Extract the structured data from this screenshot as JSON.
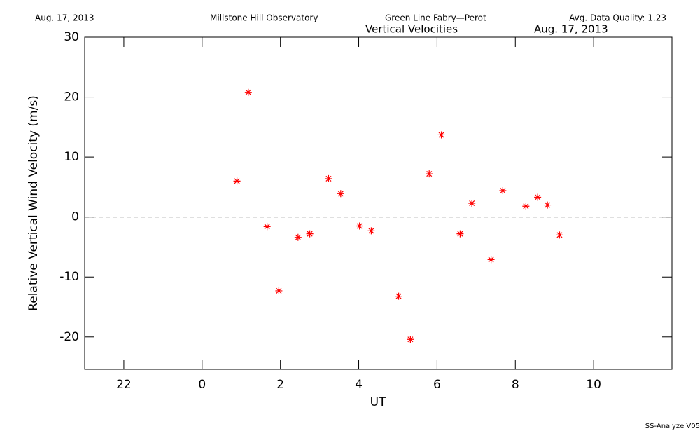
{
  "chart_data": {
    "type": "scatter",
    "header": [
      "Aug. 17, 2013",
      "Millstone Hill Observatory",
      "Green Line Fabry—Perot",
      "Avg. Data Quality: 1.23"
    ],
    "title": "Vertical Velocities",
    "subtitle": "Aug. 17, 2013",
    "x_label": "UT",
    "y_label": "Relative Vertical Wind Velocity (m/s)",
    "footer": "SS-Analyze V05",
    "xlim": [
      -3,
      12
    ],
    "xticks": [
      {
        "value": -2,
        "label": "22"
      },
      0,
      2,
      4,
      6,
      8,
      10
    ],
    "ylim": [
      -25.4,
      30
    ],
    "yticks": [
      -20,
      -10,
      0,
      10,
      20,
      30
    ],
    "reference_line": 0,
    "marker": "asterisk",
    "color": "#ff0000",
    "x": [
      0.89,
      1.18,
      1.66,
      1.96,
      2.45,
      2.75,
      3.23,
      3.54,
      4.02,
      4.32,
      5.02,
      5.32,
      5.8,
      6.11,
      6.59,
      6.89,
      7.38,
      7.68,
      8.27,
      8.57,
      8.82,
      9.13
    ],
    "values": [
      6.0,
      20.8,
      -1.6,
      -12.3,
      -3.4,
      -2.8,
      6.4,
      3.9,
      -1.5,
      -2.3,
      -13.2,
      -20.4,
      7.2,
      13.7,
      -2.8,
      2.3,
      -7.1,
      4.4,
      1.8,
      3.3,
      2.0,
      -3.0
    ]
  }
}
